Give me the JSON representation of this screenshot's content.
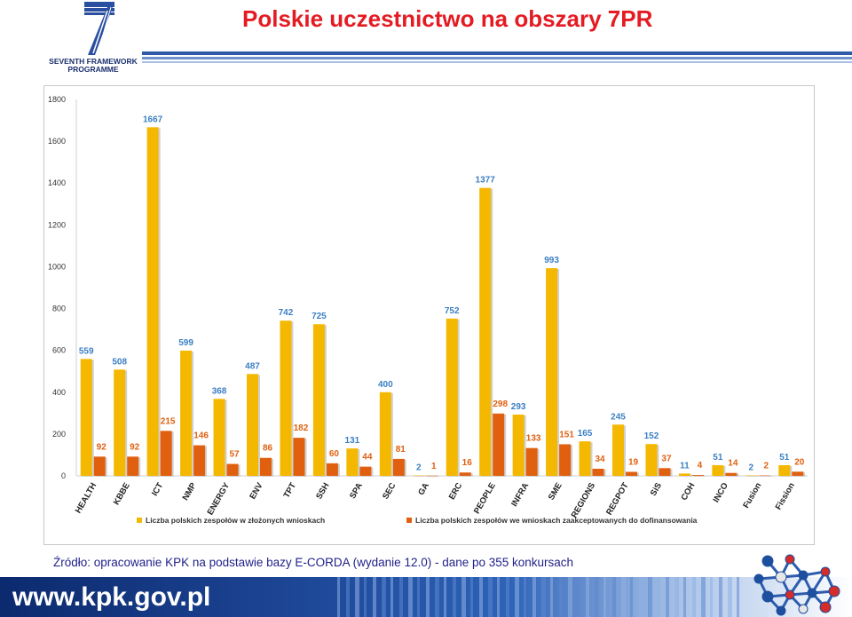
{
  "header": {
    "title": "Polskie uczestnictwo na obszary 7PR",
    "logo_text_line1": "SEVENTH FRAMEWORK",
    "logo_text_line2": "PROGRAMME"
  },
  "colors": {
    "title_red": "#e41b23",
    "series_submitted": "#f5b800",
    "series_funded": "#e06010",
    "value_label_blue": "#3b7fc4",
    "footer_blue": "#1d4696"
  },
  "chart_data": {
    "type": "bar",
    "title": "",
    "xlabel": "",
    "ylabel": "",
    "ylim": [
      0,
      1800
    ],
    "yticks": [
      0,
      200,
      400,
      600,
      800,
      1000,
      1200,
      1400,
      1600,
      1800
    ],
    "grid": false,
    "legend_position": "bottom",
    "categories": [
      "HEALTH",
      "KBBE",
      "ICT",
      "NMP",
      "ENERGY",
      "ENV",
      "TPT",
      "SSH",
      "SPA",
      "SEC",
      "GA",
      "ERC",
      "PEOPLE",
      "INFRA",
      "SME",
      "REGIONS",
      "REGPOT",
      "SiS",
      "COH",
      "INCO",
      "Fusion",
      "Fission"
    ],
    "series": [
      {
        "name": "Liczba polskich zespołów w złożonych wnioskach",
        "values": [
          559,
          508,
          1667,
          599,
          368,
          487,
          742,
          725,
          131,
          400,
          2,
          752,
          1377,
          293,
          993,
          165,
          245,
          152,
          11,
          51,
          2,
          51
        ]
      },
      {
        "name": "Liczba polskich zespołów we wnioskach zaakceptowanych do dofinansowania",
        "values": [
          92,
          92,
          215,
          146,
          57,
          86,
          182,
          60,
          44,
          81,
          1,
          16,
          298,
          133,
          151,
          34,
          19,
          37,
          4,
          14,
          2,
          20
        ]
      }
    ]
  },
  "source_text": "Źródło: opracowanie KPK na podstawie bazy E-CORDA (wydanie 12.0) - dane po 355 konkursach",
  "footer": {
    "url": "www.kpk.gov.pl"
  }
}
